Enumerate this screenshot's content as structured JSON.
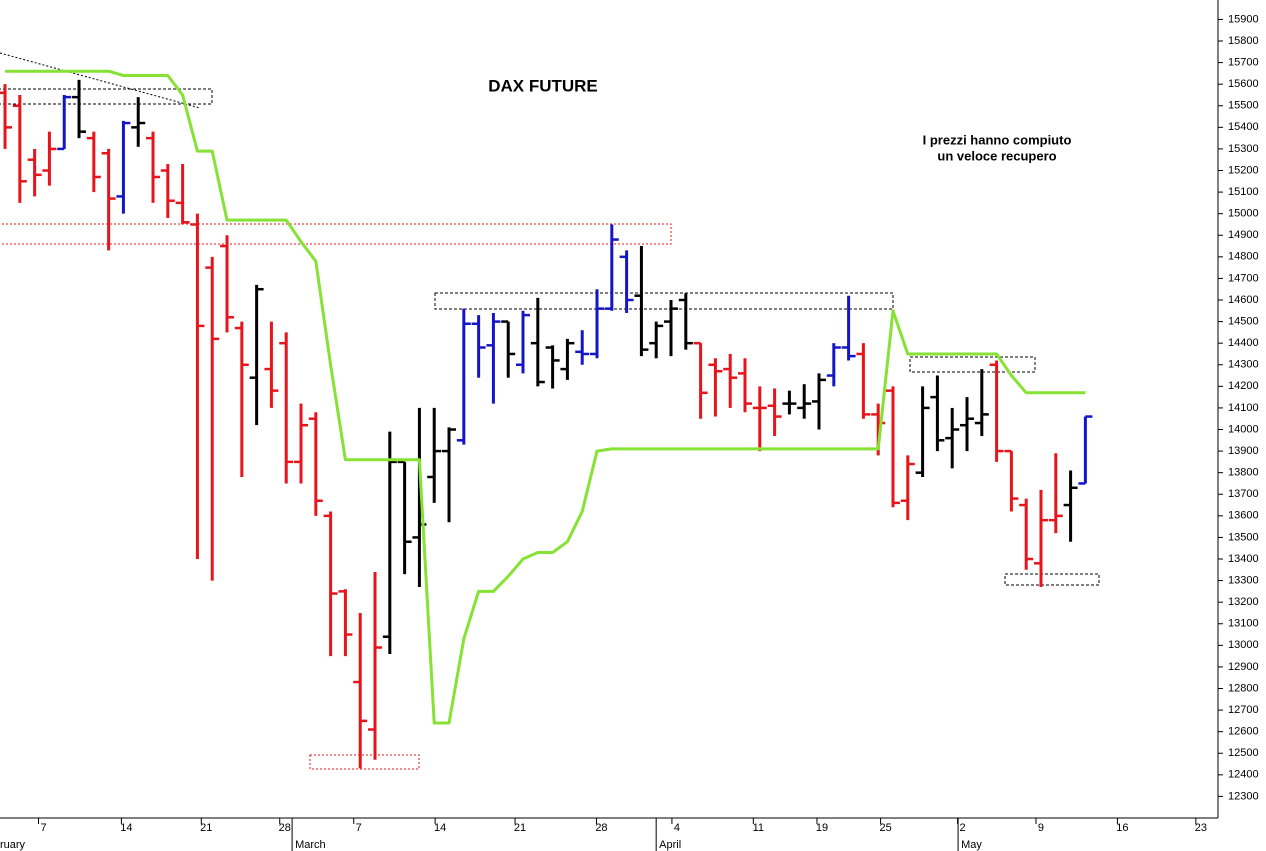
{
  "chart_data": {
    "type": "ohlc",
    "title": "DAX FUTURE",
    "annotations": [
      "I prezzi hanno compiuto",
      "un veloce recupero"
    ],
    "x": [
      0,
      1,
      2,
      3,
      4,
      5,
      6,
      7,
      8,
      9,
      10,
      11,
      12,
      13,
      14,
      15,
      16,
      17,
      18,
      19,
      20,
      21,
      22,
      23,
      24,
      25,
      26,
      27,
      28,
      29,
      30,
      31,
      32,
      33,
      34,
      35,
      36,
      37,
      38,
      39,
      40,
      41,
      42,
      43,
      44,
      45,
      46,
      47,
      48,
      49,
      50,
      51,
      52,
      53,
      54,
      55,
      56,
      57,
      58,
      59,
      60,
      61,
      62,
      63,
      64,
      65,
      66,
      67,
      68,
      69,
      70,
      71,
      72,
      73
    ],
    "ohlc": {
      "open": [
        15560,
        15500,
        15250,
        15200,
        15300,
        15540,
        15350,
        15280,
        15080,
        15400,
        15350,
        15200,
        15050,
        14950,
        14750,
        14850,
        14470,
        14240,
        14280,
        14400,
        13850,
        14050,
        13600,
        13250,
        12830,
        12610,
        13040,
        13850,
        13500,
        13780,
        13900,
        13950,
        14490,
        14390,
        14500,
        14300,
        14400,
        14380,
        14280,
        14360,
        14350,
        14560,
        14800,
        14620,
        14400,
        14500,
        14600,
        14400,
        14300,
        14280,
        14260,
        14100,
        14110,
        14120,
        14100,
        14130,
        14250,
        14380,
        14350,
        14070,
        14180,
        13670,
        13800,
        14150,
        13960,
        14020,
        14030,
        14300,
        13900,
        13650,
        13380,
        13580,
        13650,
        13750
      ],
      "high": [
        15600,
        15550,
        15300,
        15380,
        15550,
        15620,
        15380,
        15300,
        15430,
        15540,
        15380,
        15230,
        15230,
        15000,
        14800,
        14900,
        14500,
        14670,
        14500,
        14450,
        14120,
        14080,
        13620,
        13260,
        13150,
        13340,
        13990,
        13850,
        14100,
        14100,
        14010,
        14560,
        14530,
        14540,
        14500,
        14550,
        14610,
        14390,
        14420,
        14460,
        14650,
        14950,
        14830,
        14850,
        14500,
        14600,
        14630,
        14400,
        14330,
        14350,
        14330,
        14200,
        14190,
        14180,
        14210,
        14260,
        14400,
        14620,
        14400,
        14120,
        14200,
        13880,
        14200,
        14250,
        14100,
        14150,
        14280,
        14320,
        13900,
        13680,
        13720,
        13890,
        13810,
        14060
      ],
      "low": [
        15300,
        15050,
        15080,
        15130,
        15300,
        15350,
        15100,
        14830,
        15000,
        15310,
        15050,
        14980,
        14950,
        13400,
        13300,
        14450,
        13780,
        14020,
        14100,
        13750,
        13750,
        13600,
        12950,
        12950,
        12430,
        12470,
        12960,
        13330,
        13270,
        13660,
        13570,
        13930,
        14240,
        14120,
        14240,
        14260,
        14200,
        14190,
        14230,
        14300,
        14330,
        14550,
        14540,
        14340,
        14330,
        14340,
        14370,
        14050,
        14060,
        14100,
        14080,
        13900,
        13970,
        14070,
        14050,
        14000,
        14200,
        14320,
        14050,
        13880,
        13640,
        13580,
        13780,
        13900,
        13820,
        13900,
        13970,
        13850,
        13620,
        13350,
        13270,
        13520,
        13480,
        13750
      ],
      "close": [
        15400,
        15150,
        15180,
        15300,
        15540,
        15380,
        15170,
        15070,
        15420,
        15420,
        15170,
        15060,
        14960,
        14480,
        14420,
        14520,
        14300,
        14650,
        14180,
        13850,
        14020,
        13670,
        13240,
        13050,
        12650,
        12990,
        13850,
        13480,
        13560,
        13900,
        14000,
        14490,
        14380,
        14500,
        14350,
        14530,
        14220,
        14320,
        14400,
        14350,
        14560,
        14880,
        14600,
        14370,
        14480,
        14560,
        14400,
        14170,
        14270,
        14240,
        14120,
        14100,
        14060,
        14120,
        14120,
        14230,
        14380,
        14340,
        14070,
        14030,
        13660,
        13840,
        14100,
        13950,
        14000,
        14050,
        14070,
        13900,
        13680,
        13400,
        13580,
        13600,
        13730,
        14060
      ],
      "colors": [
        "#e8141b",
        "#e8141b",
        "#e8141b",
        "#e8141b",
        "#1515c8",
        "#000000",
        "#e8141b",
        "#e8141b",
        "#1515c8",
        "#000000",
        "#e8141b",
        "#e8141b",
        "#e8141b",
        "#e8141b",
        "#e8141b",
        "#e8141b",
        "#e8141b",
        "#000000",
        "#e8141b",
        "#e8141b",
        "#e8141b",
        "#e8141b",
        "#e8141b",
        "#e8141b",
        "#e8141b",
        "#e8141b",
        "#000000",
        "#000000",
        "#000000",
        "#000000",
        "#000000",
        "#1515c8",
        "#1515c8",
        "#1515c8",
        "#000000",
        "#1515c8",
        "#000000",
        "#000000",
        "#000000",
        "#1515c8",
        "#1515c8",
        "#1515c8",
        "#1515c8",
        "#000000",
        "#000000",
        "#000000",
        "#000000",
        "#e8141b",
        "#e8141b",
        "#e8141b",
        "#e8141b",
        "#e8141b",
        "#e8141b",
        "#000000",
        "#000000",
        "#000000",
        "#1515c8",
        "#1515c8",
        "#e8141b",
        "#e8141b",
        "#e8141b",
        "#e8141b",
        "#000000",
        "#000000",
        "#000000",
        "#000000",
        "#000000",
        "#e8141b",
        "#e8141b",
        "#e8141b",
        "#e8141b",
        "#e8141b",
        "#000000",
        "#1515c8"
      ]
    },
    "line": {
      "color": "#86e234",
      "values": [
        15660,
        15660,
        15660,
        15660,
        15660,
        15660,
        15660,
        15660,
        15640,
        15640,
        15640,
        15640,
        15550,
        15290,
        15290,
        14970,
        14970,
        14970,
        14970,
        14970,
        14870,
        14780,
        14300,
        13860,
        13860,
        13860,
        13860,
        13860,
        13860,
        12640,
        12640,
        13030,
        13250,
        13250,
        13320,
        13400,
        13430,
        13430,
        13480,
        13620,
        13900,
        13910,
        13910,
        13910,
        13910,
        13910,
        13910,
        13910,
        13910,
        13910,
        13910,
        13910,
        13910,
        13910,
        13910,
        13910,
        13910,
        13910,
        13910,
        13910,
        14550,
        14350,
        14350,
        14350,
        14350,
        14350,
        14350,
        14350,
        14250,
        14170,
        14170,
        14170,
        14170,
        14170
      ]
    },
    "xlim": [
      -0.34,
      81.96
    ],
    "ylim": [
      12200,
      15990
    ],
    "yticks": [
      12300,
      12400,
      12500,
      12600,
      12700,
      12800,
      12900,
      13000,
      13100,
      13200,
      13300,
      13400,
      13500,
      13600,
      13700,
      13800,
      13900,
      14000,
      14100,
      14200,
      14300,
      14400,
      14500,
      14600,
      14700,
      14800,
      14900,
      15000,
      15100,
      15200,
      15300,
      15400,
      15500,
      15600,
      15700,
      15800,
      15900
    ],
    "xticks": [
      {
        "value": 2.6,
        "label": "7"
      },
      {
        "value": 8.2,
        "label": "14"
      },
      {
        "value": 13.6,
        "label": "21"
      },
      {
        "value": 18.9,
        "label": "28"
      },
      {
        "value": 23.9,
        "label": "7"
      },
      {
        "value": 29.4,
        "label": "14"
      },
      {
        "value": 34.8,
        "label": "21"
      },
      {
        "value": 40.3,
        "label": "28"
      },
      {
        "value": 45.4,
        "label": "4"
      },
      {
        "value": 50.9,
        "label": "11"
      },
      {
        "value": 55.2,
        "label": "19"
      },
      {
        "value": 59.5,
        "label": "25"
      },
      {
        "value": 64.7,
        "label": "2"
      },
      {
        "value": 70,
        "label": "9"
      },
      {
        "value": 75.5,
        "label": "16"
      },
      {
        "value": 80.8,
        "label": "23"
      }
    ],
    "months": [
      {
        "value": -0.3,
        "label": "ruary"
      },
      {
        "value": 19.6,
        "label": "March"
      },
      {
        "value": 44.2,
        "label": "April"
      },
      {
        "value": 64.6,
        "label": "May"
      }
    ]
  }
}
